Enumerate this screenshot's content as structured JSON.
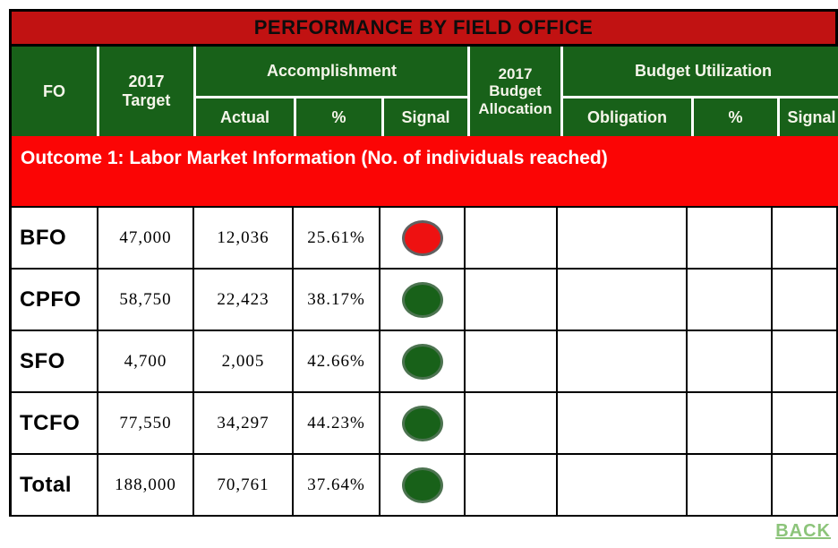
{
  "title": "PERFORMANCE BY FIELD OFFICE",
  "header": {
    "fo": "FO",
    "target": "2017\nTarget",
    "accomplishment": "Accomplishment",
    "actual": "Actual",
    "percent": "%",
    "signal": "Signal",
    "budget_allocation": "2017\nBudget\nAllocation",
    "budget_utilization": "Budget Utilization",
    "obligation": "Obligation",
    "utilization_percent": "%",
    "utilization_signal": "Signal"
  },
  "section": {
    "label": "Outcome 1: Labor Market Information (No. of individuals reached)"
  },
  "rows": [
    {
      "fo": "BFO",
      "target": "47,000",
      "actual": "12,036",
      "percent": "25.61%",
      "signal": "red"
    },
    {
      "fo": "CPFO",
      "target": "58,750",
      "actual": "22,423",
      "percent": "38.17%",
      "signal": "green"
    },
    {
      "fo": "SFO",
      "target": "4,700",
      "actual": "2,005",
      "percent": "42.66%",
      "signal": "green"
    },
    {
      "fo": "TCFO",
      "target": "77,550",
      "actual": "34,297",
      "percent": "44.23%",
      "signal": "green"
    },
    {
      "fo": "Total",
      "target": "188,000",
      "actual": "70,761",
      "percent": "37.64%",
      "signal": "green"
    }
  ],
  "back_label": "BACK",
  "colors": {
    "banner_red": "#c11212",
    "section_red": "#fb0505",
    "header_green": "#186119",
    "signal_red": "#ee1111",
    "signal_red_border": "#606060",
    "signal_green": "#186119",
    "signal_green_border": "#4c7350",
    "back_link_green": "#8cc47a"
  }
}
